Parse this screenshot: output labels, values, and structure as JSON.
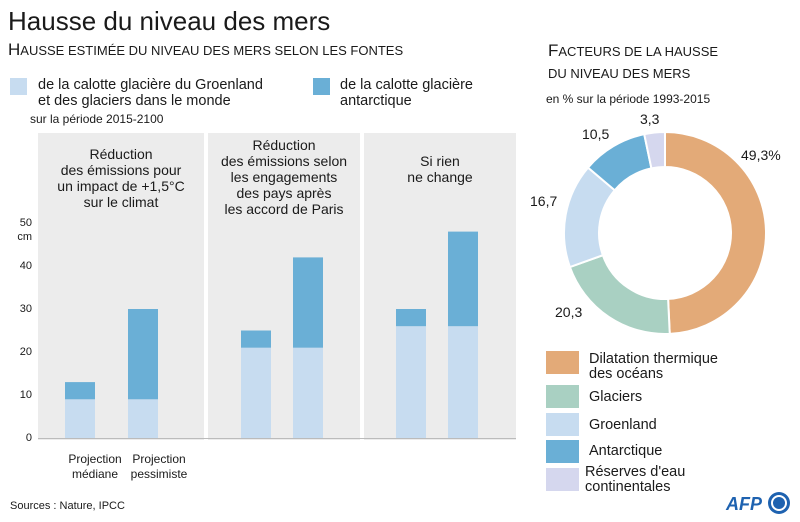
{
  "title": "Hausse du niveau des mers",
  "left": {
    "subtitle_big1": "H",
    "subtitle_small1": "AUSSE ESTIMÉE DU NIVEAU DES MERS SELON LES FONTES",
    "legend": [
      {
        "label_line1": "de la calotte glacière du Groenland",
        "label_line2": "et des glaciers dans le monde",
        "color": "#c7dcf0"
      },
      {
        "label_line1": "de la calotte glacière",
        "label_line2": "antarctique",
        "color": "#6aafd6"
      }
    ],
    "period": "sur la période 2015-2100",
    "panels": [
      {
        "lines": [
          "Réduction",
          "des émissions pour",
          "un impact de +1,5°C",
          "sur le climat"
        ]
      },
      {
        "lines": [
          "Réduction",
          "des émissions selon",
          "les engagements",
          "des pays après",
          "les accord de Paris"
        ]
      },
      {
        "lines": [
          "Si rien",
          "ne change"
        ]
      }
    ],
    "y_unit": "cm",
    "x_categories": [
      {
        "line1": "Projection",
        "line2": "médiane"
      },
      {
        "line1": "Projection",
        "line2": "pessimiste"
      }
    ]
  },
  "right": {
    "subtitle_big1": "F",
    "subtitle_small1": "ACTEURS DE LA HAUSSE",
    "subtitle_line2": "DU NIVEAU DES MERS",
    "period": "en % sur la période 1993-2015",
    "legend": [
      {
        "line1": "Dilatation thermique",
        "line2": "des océans"
      },
      {
        "line1": "Glaciers",
        "line2": ""
      },
      {
        "line1": "Groenland",
        "line2": ""
      },
      {
        "line1": "Antarctique",
        "line2": ""
      },
      {
        "line1": "Réserves d'eau",
        "line2": "continentales"
      }
    ]
  },
  "sources": "Sources : Nature, IPCC",
  "logo": "AFP",
  "colors": {
    "greenland": "#c7dcf0",
    "antarctic": "#6aafd6",
    "thermal": "#e3aa78",
    "glaciers": "#a9d0c2",
    "continental": "#d5d7ee",
    "panel": "#ececec"
  },
  "chart_data": [
    {
      "type": "bar",
      "stacked": true,
      "scenarios": [
        "Réduction des émissions pour un impact de +1,5°C sur le climat",
        "Réduction des émissions selon les engagements des pays après les accord de Paris",
        "Si rien ne change"
      ],
      "categories": [
        "Projection médiane",
        "Projection pessimiste",
        "Projection médiane",
        "Projection pessimiste",
        "Projection médiane",
        "Projection pessimiste"
      ],
      "series": [
        {
          "name": "de la calotte glacière du Groenland et des glaciers dans le monde",
          "color": "#c7dcf0",
          "values": [
            9,
            9,
            21,
            21,
            26,
            26
          ]
        },
        {
          "name": "de la calotte glacière antarctique",
          "color": "#6aafd6",
          "values": [
            4,
            21,
            4,
            21,
            4,
            22
          ]
        }
      ],
      "yticks": [
        "0",
        "10",
        "20",
        "30",
        "40",
        "50"
      ],
      "ylim": [
        0,
        50
      ],
      "ylabel": "cm",
      "grid": false
    },
    {
      "type": "pie",
      "donut": true,
      "labels": [
        "Dilatation thermique des océans",
        "Glaciers",
        "Groenland",
        "Antarctique",
        "Réserves d'eau continentales"
      ],
      "values": [
        49.3,
        20.3,
        16.7,
        10.5,
        3.3
      ],
      "value_labels": [
        "49,3%",
        "20,3",
        "16,7",
        "10,5",
        "3,3"
      ],
      "colors": [
        "#e3aa78",
        "#a9d0c2",
        "#c7dcf0",
        "#6aafd6",
        "#d5d7ee"
      ]
    }
  ]
}
